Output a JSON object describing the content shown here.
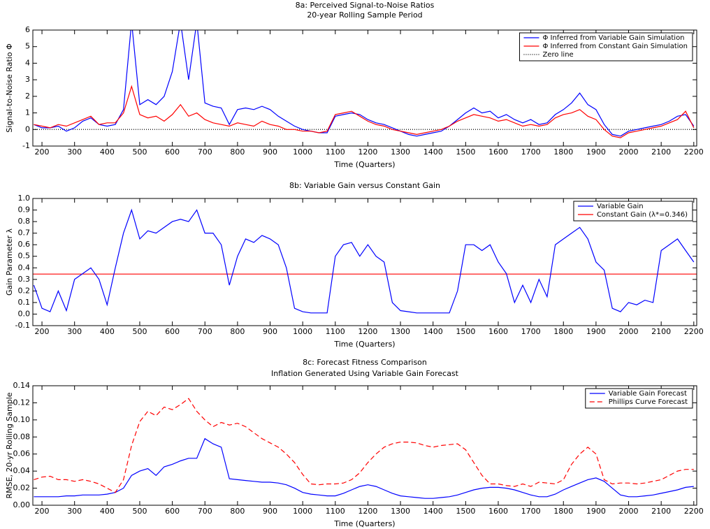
{
  "chart_data": [
    {
      "type": "line",
      "title": "8a: Perceived Signal-to-Noise Ratios",
      "subtitle": "20-year Rolling Sample Period",
      "xlabel": "Time (Quarters)",
      "ylabel": "Signal-to-Noise Ratio Φ",
      "xlim": [
        172,
        2209
      ],
      "ylim": [
        -1,
        6
      ],
      "xticks": [
        200,
        300,
        400,
        500,
        600,
        700,
        800,
        900,
        1000,
        1100,
        1200,
        1300,
        1400,
        1500,
        1600,
        1700,
        1800,
        1900,
        2000,
        2100,
        2200
      ],
      "yticks": [
        -1,
        0,
        1,
        2,
        3,
        4,
        5,
        6
      ],
      "grid": false,
      "legend": "upper right",
      "x": [
        175,
        200,
        225,
        250,
        275,
        300,
        325,
        350,
        375,
        400,
        425,
        450,
        475,
        500,
        525,
        550,
        575,
        600,
        625,
        650,
        675,
        700,
        725,
        750,
        775,
        800,
        825,
        850,
        875,
        900,
        925,
        950,
        975,
        1000,
        1025,
        1050,
        1075,
        1100,
        1125,
        1150,
        1175,
        1200,
        1225,
        1250,
        1275,
        1300,
        1325,
        1350,
        1375,
        1400,
        1425,
        1450,
        1475,
        1500,
        1525,
        1550,
        1575,
        1600,
        1625,
        1650,
        1675,
        1700,
        1725,
        1750,
        1775,
        1800,
        1825,
        1850,
        1875,
        1900,
        1925,
        1950,
        1975,
        2000,
        2025,
        2050,
        2075,
        2100,
        2125,
        2150,
        2175,
        2200
      ],
      "series": [
        {
          "name": "Φ Inferred from Variable Gain Simulation",
          "color": "#0000ff",
          "values": [
            0.3,
            0.1,
            0.1,
            0.2,
            -0.1,
            0.1,
            0.5,
            0.7,
            0.3,
            0.2,
            0.3,
            1.2,
            6.5,
            1.5,
            1.8,
            1.5,
            2.0,
            3.5,
            6.5,
            3.0,
            6.5,
            1.6,
            1.4,
            1.3,
            0.3,
            1.2,
            1.3,
            1.2,
            1.4,
            1.2,
            0.8,
            0.5,
            0.2,
            0.0,
            -0.1,
            -0.2,
            -0.2,
            0.8,
            0.9,
            1.0,
            0.9,
            0.6,
            0.4,
            0.3,
            0.1,
            -0.1,
            -0.3,
            -0.4,
            -0.3,
            -0.2,
            -0.1,
            0.2,
            0.6,
            1.0,
            1.3,
            1.0,
            1.1,
            0.7,
            0.9,
            0.6,
            0.4,
            0.6,
            0.3,
            0.4,
            0.9,
            1.2,
            1.6,
            2.2,
            1.5,
            1.2,
            0.3,
            -0.3,
            -0.4,
            -0.1,
            0.0,
            0.1,
            0.2,
            0.3,
            0.5,
            0.8,
            0.9,
            0.2
          ]
        },
        {
          "name": "Φ Inferred from Constant Gain Simulation",
          "color": "#ff0000",
          "values": [
            0.3,
            0.2,
            0.1,
            0.3,
            0.2,
            0.4,
            0.6,
            0.8,
            0.3,
            0.4,
            0.4,
            1.0,
            2.6,
            0.9,
            0.7,
            0.8,
            0.5,
            0.9,
            1.5,
            0.8,
            1.0,
            0.6,
            0.4,
            0.3,
            0.2,
            0.4,
            0.3,
            0.2,
            0.5,
            0.3,
            0.2,
            0.0,
            0.0,
            -0.1,
            -0.1,
            -0.2,
            -0.1,
            0.9,
            1.0,
            1.1,
            0.8,
            0.5,
            0.3,
            0.2,
            0.0,
            -0.1,
            -0.2,
            -0.3,
            -0.2,
            -0.1,
            0.0,
            0.2,
            0.5,
            0.7,
            0.9,
            0.8,
            0.7,
            0.5,
            0.6,
            0.4,
            0.2,
            0.3,
            0.2,
            0.3,
            0.7,
            0.9,
            1.0,
            1.2,
            0.8,
            0.6,
            0.0,
            -0.4,
            -0.5,
            -0.2,
            -0.1,
            0.0,
            0.1,
            0.2,
            0.4,
            0.6,
            1.1,
            0.1
          ]
        }
      ],
      "hlines": [
        {
          "name": "Zero line",
          "color": "#000000",
          "dash": "dotted",
          "value": 0
        }
      ]
    },
    {
      "type": "line",
      "title": "8b: Variable Gain versus Constant Gain",
      "xlabel": "Time (Quarters)",
      "ylabel": "Gain Parameter λ",
      "xlim": [
        172,
        2209
      ],
      "ylim": [
        -0.1,
        1.0
      ],
      "xticks": [
        200,
        300,
        400,
        500,
        600,
        700,
        800,
        900,
        1000,
        1100,
        1200,
        1300,
        1400,
        1500,
        1600,
        1700,
        1800,
        1900,
        2000,
        2100,
        2200
      ],
      "yticks": [
        -0.1,
        {
          "value": 0,
          "label": "0.0"
        },
        0.1,
        0.2,
        0.3,
        0.4,
        0.5,
        0.6,
        0.7,
        0.8,
        0.9,
        {
          "value": 1,
          "label": "1.0"
        }
      ],
      "grid": false,
      "legend": "upper right",
      "x": [
        175,
        200,
        225,
        250,
        275,
        300,
        325,
        350,
        375,
        400,
        425,
        450,
        475,
        500,
        525,
        550,
        575,
        600,
        625,
        650,
        675,
        700,
        725,
        750,
        775,
        800,
        825,
        850,
        875,
        900,
        925,
        950,
        975,
        1000,
        1025,
        1050,
        1075,
        1100,
        1125,
        1150,
        1175,
        1200,
        1225,
        1250,
        1275,
        1300,
        1325,
        1350,
        1375,
        1400,
        1425,
        1450,
        1475,
        1500,
        1525,
        1550,
        1575,
        1600,
        1625,
        1650,
        1675,
        1700,
        1725,
        1750,
        1775,
        1800,
        1825,
        1850,
        1875,
        1900,
        1925,
        1950,
        1975,
        2000,
        2025,
        2050,
        2075,
        2100,
        2125,
        2150,
        2175,
        2200
      ],
      "series": [
        {
          "name": "Variable Gain",
          "color": "#0000ff",
          "values": [
            0.25,
            0.05,
            0.02,
            0.2,
            0.03,
            0.3,
            0.35,
            0.4,
            0.3,
            0.08,
            0.4,
            0.7,
            0.9,
            0.65,
            0.72,
            0.7,
            0.75,
            0.8,
            0.82,
            0.8,
            0.9,
            0.7,
            0.7,
            0.6,
            0.25,
            0.5,
            0.65,
            0.62,
            0.68,
            0.65,
            0.6,
            0.4,
            0.05,
            0.02,
            0.01,
            0.01,
            0.01,
            0.5,
            0.6,
            0.62,
            0.5,
            0.6,
            0.5,
            0.45,
            0.1,
            0.03,
            0.02,
            0.01,
            0.01,
            0.01,
            0.01,
            0.01,
            0.2,
            0.6,
            0.6,
            0.55,
            0.6,
            0.45,
            0.35,
            0.1,
            0.25,
            0.1,
            0.3,
            0.15,
            0.6,
            0.65,
            0.7,
            0.75,
            0.65,
            0.45,
            0.38,
            0.05,
            0.02,
            0.1,
            0.08,
            0.12,
            0.1,
            0.55,
            0.6,
            0.65,
            0.55,
            0.45
          ]
        }
      ],
      "hlines": [
        {
          "name": "Constant Gain (λ*=0.346)",
          "color": "#ff0000",
          "dash": "solid",
          "value": 0.346
        }
      ]
    },
    {
      "type": "line",
      "title": "8c: Forecast Fitness Comparison",
      "subtitle": "Inflation Generated Using Variable Gain Forecast",
      "xlabel": "Time (Quarters)",
      "ylabel": "RMSE, 20-yr Rolling Sample",
      "xlim": [
        172,
        2209
      ],
      "ylim": [
        0,
        0.14
      ],
      "xticks": [
        200,
        300,
        400,
        500,
        600,
        700,
        800,
        900,
        1000,
        1100,
        1200,
        1300,
        1400,
        1500,
        1600,
        1700,
        1800,
        1900,
        2000,
        2100,
        2200
      ],
      "yticks": [
        {
          "value": 0,
          "label": "0.00"
        },
        0.02,
        0.04,
        0.06,
        0.08,
        {
          "value": 0.1,
          "label": "0.10"
        },
        0.12,
        0.14
      ],
      "grid": false,
      "legend": "upper right",
      "x": [
        175,
        200,
        225,
        250,
        275,
        300,
        325,
        350,
        375,
        400,
        425,
        450,
        475,
        500,
        525,
        550,
        575,
        600,
        625,
        650,
        675,
        700,
        725,
        750,
        775,
        800,
        825,
        850,
        875,
        900,
        925,
        950,
        975,
        1000,
        1025,
        1050,
        1075,
        1100,
        1125,
        1150,
        1175,
        1200,
        1225,
        1250,
        1275,
        1300,
        1325,
        1350,
        1375,
        1400,
        1425,
        1450,
        1475,
        1500,
        1525,
        1550,
        1575,
        1600,
        1625,
        1650,
        1675,
        1700,
        1725,
        1750,
        1775,
        1800,
        1825,
        1850,
        1875,
        1900,
        1925,
        1950,
        1975,
        2000,
        2025,
        2050,
        2075,
        2100,
        2125,
        2150,
        2175,
        2200
      ],
      "series": [
        {
          "name": "Variable Gain Forecast",
          "color": "#0000ff",
          "dash": "solid",
          "values": [
            0.01,
            0.01,
            0.01,
            0.01,
            0.011,
            0.011,
            0.012,
            0.012,
            0.012,
            0.013,
            0.015,
            0.02,
            0.035,
            0.04,
            0.043,
            0.035,
            0.045,
            0.048,
            0.052,
            0.055,
            0.055,
            0.078,
            0.072,
            0.068,
            0.031,
            0.03,
            0.029,
            0.028,
            0.027,
            0.027,
            0.026,
            0.024,
            0.02,
            0.015,
            0.013,
            0.012,
            0.011,
            0.011,
            0.014,
            0.018,
            0.022,
            0.024,
            0.022,
            0.018,
            0.014,
            0.011,
            0.01,
            0.009,
            0.008,
            0.008,
            0.009,
            0.01,
            0.012,
            0.015,
            0.018,
            0.02,
            0.021,
            0.021,
            0.02,
            0.018,
            0.015,
            0.012,
            0.01,
            0.01,
            0.013,
            0.018,
            0.022,
            0.026,
            0.03,
            0.032,
            0.028,
            0.02,
            0.012,
            0.01,
            0.01,
            0.011,
            0.012,
            0.014,
            0.016,
            0.018,
            0.021,
            0.022
          ]
        },
        {
          "name": "Phillips Curve Forecast",
          "color": "#ff0000",
          "dash": "dashed",
          "values": [
            0.03,
            0.033,
            0.034,
            0.03,
            0.03,
            0.028,
            0.03,
            0.028,
            0.025,
            0.02,
            0.015,
            0.03,
            0.07,
            0.098,
            0.11,
            0.105,
            0.115,
            0.112,
            0.118,
            0.125,
            0.11,
            0.1,
            0.092,
            0.097,
            0.094,
            0.096,
            0.092,
            0.085,
            0.078,
            0.073,
            0.068,
            0.06,
            0.05,
            0.036,
            0.025,
            0.024,
            0.025,
            0.025,
            0.026,
            0.03,
            0.038,
            0.05,
            0.06,
            0.068,
            0.072,
            0.074,
            0.074,
            0.073,
            0.07,
            0.068,
            0.07,
            0.071,
            0.072,
            0.065,
            0.05,
            0.035,
            0.025,
            0.025,
            0.023,
            0.022,
            0.025,
            0.022,
            0.027,
            0.026,
            0.025,
            0.03,
            0.048,
            0.06,
            0.068,
            0.06,
            0.03,
            0.025,
            0.026,
            0.026,
            0.025,
            0.026,
            0.028,
            0.03,
            0.035,
            0.04,
            0.042,
            0.042
          ]
        }
      ]
    }
  ]
}
